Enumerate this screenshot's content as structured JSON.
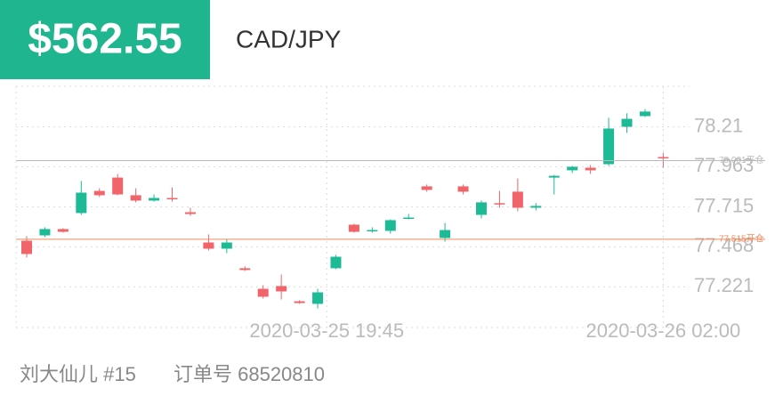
{
  "header": {
    "price": "$562.55",
    "pair": "CAD/JPY"
  },
  "chart_data": {
    "type": "candlestick",
    "categories": [
      null,
      null,
      null,
      null,
      null,
      null,
      null,
      null,
      null,
      null,
      null,
      null,
      null,
      null,
      null,
      null,
      null,
      null,
      null,
      null,
      null,
      null,
      null,
      null,
      null,
      null,
      null,
      null,
      null,
      null,
      null,
      null,
      null,
      null,
      null,
      null
    ],
    "open": [
      77.506,
      77.539,
      77.578,
      77.677,
      77.814,
      77.896,
      77.787,
      77.754,
      77.77,
      77.682,
      77.495,
      77.457,
      77.336,
      77.209,
      77.226,
      77.132,
      77.116,
      77.336,
      77.605,
      77.567,
      77.567,
      77.644,
      77.842,
      77.523,
      77.842,
      77.666,
      77.738,
      77.809,
      77.71,
      77.896,
      77.941,
      77.957,
      77.979,
      78.21,
      78.276,
      78.023
    ],
    "high": [
      77.534,
      77.589,
      77.583,
      77.875,
      77.83,
      77.919,
      77.83,
      77.792,
      77.836,
      77.71,
      77.545,
      77.517,
      77.347,
      77.231,
      77.297,
      77.138,
      77.209,
      77.418,
      77.611,
      77.589,
      77.638,
      77.671,
      77.853,
      77.616,
      77.853,
      77.754,
      77.814,
      77.891,
      77.738,
      77.913,
      77.968,
      77.974,
      78.265,
      78.293,
      78.32,
      78.05
    ],
    "low": [
      77.402,
      77.528,
      77.556,
      77.666,
      77.776,
      77.787,
      77.743,
      77.748,
      77.748,
      77.66,
      77.446,
      77.429,
      77.319,
      77.149,
      77.143,
      77.116,
      77.088,
      77.33,
      77.556,
      77.556,
      77.55,
      77.638,
      77.809,
      77.501,
      77.792,
      77.644,
      77.71,
      77.688,
      77.693,
      77.792,
      77.924,
      77.919,
      77.968,
      78.172,
      78.27,
      77.957
    ],
    "close": [
      77.424,
      77.578,
      77.561,
      77.803,
      77.787,
      77.792,
      77.754,
      77.77,
      77.765,
      77.671,
      77.457,
      77.495,
      77.325,
      77.16,
      77.193,
      77.121,
      77.187,
      77.407,
      77.561,
      77.572,
      77.633,
      77.649,
      77.82,
      77.572,
      77.809,
      77.743,
      77.732,
      77.71,
      77.721,
      77.907,
      77.963,
      77.941,
      78.199,
      78.259,
      78.304,
      78.018
    ],
    "up_color": "#1dba96",
    "down_color": "#f0646a",
    "ylim": [
      76.97,
      78.46
    ],
    "yticks": [
      78.21,
      77.963,
      77.715,
      77.468,
      77.221
    ],
    "xticks": [
      {
        "value": 16.5,
        "label": "2020-03-25 19:45"
      },
      {
        "value": 35,
        "label": "2020-03-26 02:00"
      }
    ],
    "lines": [
      {
        "value": 78.001,
        "label": "78.001平仓",
        "color": "#bbbbbb"
      },
      {
        "value": 77.515,
        "label": "77.515开仓",
        "color": "#f08a5d"
      }
    ]
  },
  "footer": {
    "user": "刘大仙儿 #15",
    "order": "订单号 68520810"
  }
}
